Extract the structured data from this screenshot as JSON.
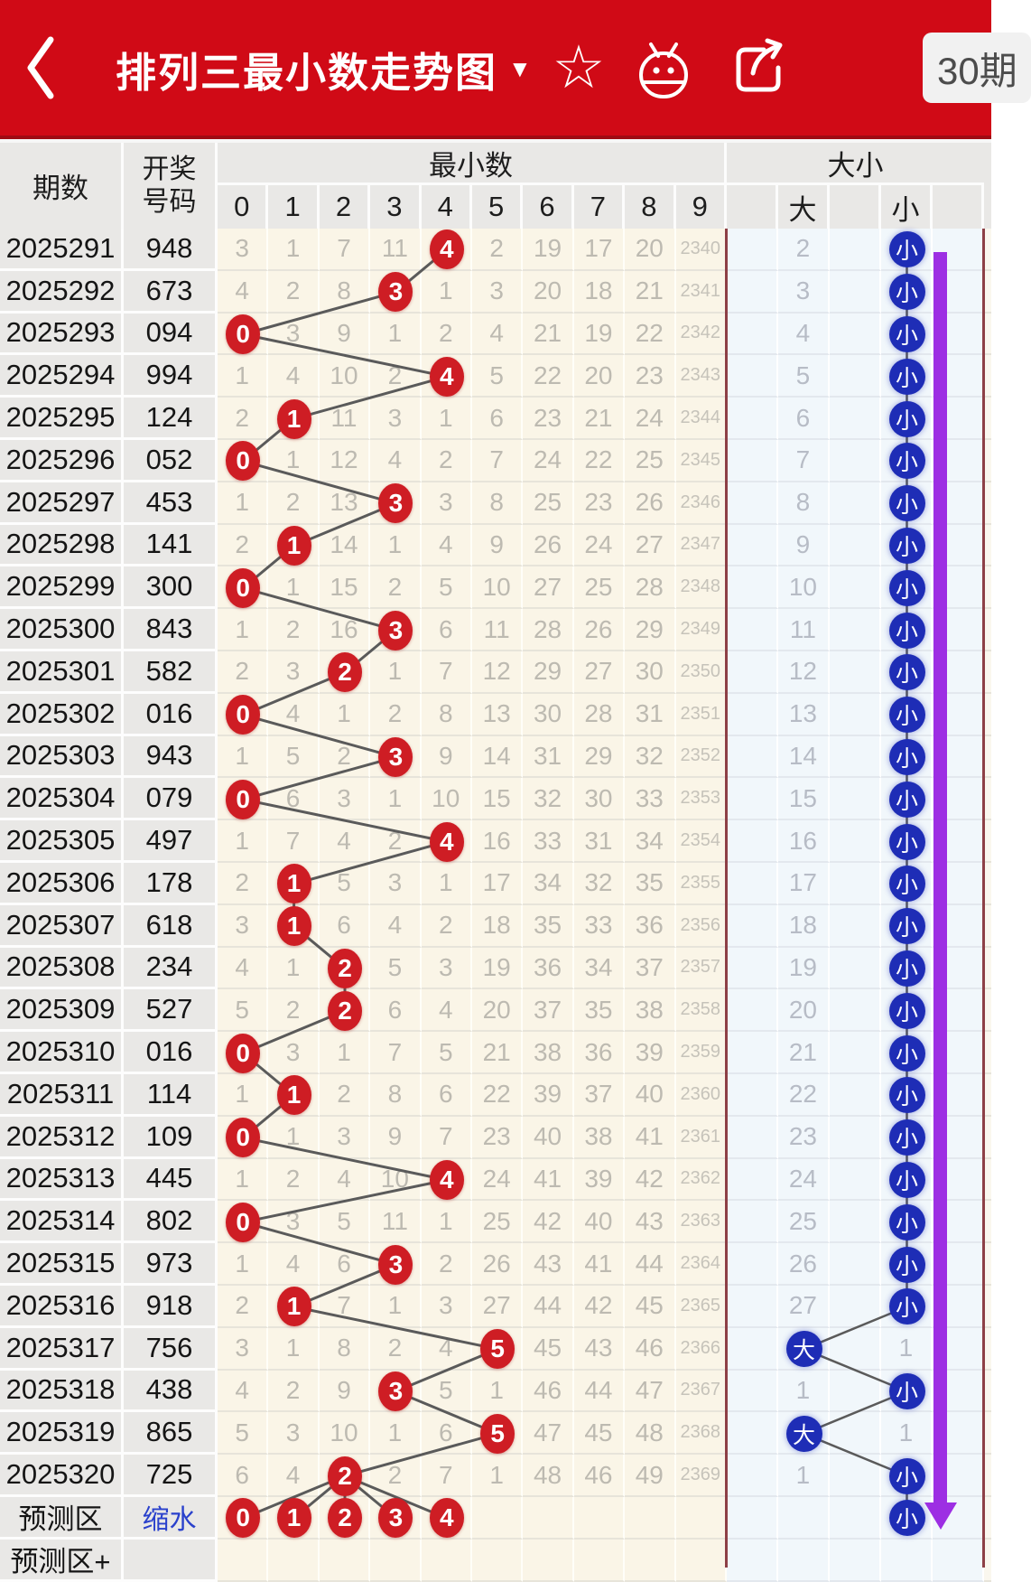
{
  "app_bar": {
    "title": "排列三最小数走势图",
    "title_caret": "▼",
    "star_icon": "star-outline",
    "android_icon": "android-robot",
    "share_icon": "share-export",
    "period_selector": "30期"
  },
  "table_header": {
    "period": "期数",
    "code_line1": "开奖",
    "code_line2": "号码",
    "min_group": "最小数",
    "digits": [
      "0",
      "1",
      "2",
      "3",
      "4",
      "5",
      "6",
      "7",
      "8",
      "9"
    ],
    "size_group": "大小",
    "big": "大",
    "small": "小"
  },
  "rows": [
    {
      "period": "2025291",
      "code": "948",
      "hit": 4,
      "counts": [
        "3",
        "1",
        "7",
        "11",
        "4",
        "2",
        "19",
        "17",
        "20",
        "2340"
      ],
      "size": "小",
      "other": "2"
    },
    {
      "period": "2025292",
      "code": "673",
      "hit": 3,
      "counts": [
        "4",
        "2",
        "8",
        "3",
        "1",
        "3",
        "20",
        "18",
        "21",
        "2341"
      ],
      "size": "小",
      "other": "3"
    },
    {
      "period": "2025293",
      "code": "094",
      "hit": 0,
      "counts": [
        "0",
        "3",
        "9",
        "1",
        "2",
        "4",
        "21",
        "19",
        "22",
        "2342"
      ],
      "size": "小",
      "other": "4"
    },
    {
      "period": "2025294",
      "code": "994",
      "hit": 4,
      "counts": [
        "1",
        "4",
        "10",
        "2",
        "4",
        "5",
        "22",
        "20",
        "23",
        "2343"
      ],
      "size": "小",
      "other": "5"
    },
    {
      "period": "2025295",
      "code": "124",
      "hit": 1,
      "counts": [
        "2",
        "1",
        "11",
        "3",
        "1",
        "6",
        "23",
        "21",
        "24",
        "2344"
      ],
      "size": "小",
      "other": "6"
    },
    {
      "period": "2025296",
      "code": "052",
      "hit": 0,
      "counts": [
        "0",
        "1",
        "12",
        "4",
        "2",
        "7",
        "24",
        "22",
        "25",
        "2345"
      ],
      "size": "小",
      "other": "7"
    },
    {
      "period": "2025297",
      "code": "453",
      "hit": 3,
      "counts": [
        "1",
        "2",
        "13",
        "3",
        "3",
        "8",
        "25",
        "23",
        "26",
        "2346"
      ],
      "size": "小",
      "other": "8"
    },
    {
      "period": "2025298",
      "code": "141",
      "hit": 1,
      "counts": [
        "2",
        "1",
        "14",
        "1",
        "4",
        "9",
        "26",
        "24",
        "27",
        "2347"
      ],
      "size": "小",
      "other": "9"
    },
    {
      "period": "2025299",
      "code": "300",
      "hit": 0,
      "counts": [
        "0",
        "1",
        "15",
        "2",
        "5",
        "10",
        "27",
        "25",
        "28",
        "2348"
      ],
      "size": "小",
      "other": "10"
    },
    {
      "period": "2025300",
      "code": "843",
      "hit": 3,
      "counts": [
        "1",
        "2",
        "16",
        "3",
        "6",
        "11",
        "28",
        "26",
        "29",
        "2349"
      ],
      "size": "小",
      "other": "11"
    },
    {
      "period": "2025301",
      "code": "582",
      "hit": 2,
      "counts": [
        "2",
        "3",
        "2",
        "1",
        "7",
        "12",
        "29",
        "27",
        "30",
        "2350"
      ],
      "size": "小",
      "other": "12"
    },
    {
      "period": "2025302",
      "code": "016",
      "hit": 0,
      "counts": [
        "0",
        "4",
        "1",
        "2",
        "8",
        "13",
        "30",
        "28",
        "31",
        "2351"
      ],
      "size": "小",
      "other": "13"
    },
    {
      "period": "2025303",
      "code": "943",
      "hit": 3,
      "counts": [
        "1",
        "5",
        "2",
        "3",
        "9",
        "14",
        "31",
        "29",
        "32",
        "2352"
      ],
      "size": "小",
      "other": "14"
    },
    {
      "period": "2025304",
      "code": "079",
      "hit": 0,
      "counts": [
        "0",
        "6",
        "3",
        "1",
        "10",
        "15",
        "32",
        "30",
        "33",
        "2353"
      ],
      "size": "小",
      "other": "15"
    },
    {
      "period": "2025305",
      "code": "497",
      "hit": 4,
      "counts": [
        "1",
        "7",
        "4",
        "2",
        "4",
        "16",
        "33",
        "31",
        "34",
        "2354"
      ],
      "size": "小",
      "other": "16"
    },
    {
      "period": "2025306",
      "code": "178",
      "hit": 1,
      "counts": [
        "2",
        "1",
        "5",
        "3",
        "1",
        "17",
        "34",
        "32",
        "35",
        "2355"
      ],
      "size": "小",
      "other": "17"
    },
    {
      "period": "2025307",
      "code": "618",
      "hit": 1,
      "counts": [
        "3",
        "1",
        "6",
        "4",
        "2",
        "18",
        "35",
        "33",
        "36",
        "2356"
      ],
      "size": "小",
      "other": "18"
    },
    {
      "period": "2025308",
      "code": "234",
      "hit": 2,
      "counts": [
        "4",
        "1",
        "2",
        "5",
        "3",
        "19",
        "36",
        "34",
        "37",
        "2357"
      ],
      "size": "小",
      "other": "19"
    },
    {
      "period": "2025309",
      "code": "527",
      "hit": 2,
      "counts": [
        "5",
        "2",
        "2",
        "6",
        "4",
        "20",
        "37",
        "35",
        "38",
        "2358"
      ],
      "size": "小",
      "other": "20"
    },
    {
      "period": "2025310",
      "code": "016",
      "hit": 0,
      "counts": [
        "0",
        "3",
        "1",
        "7",
        "5",
        "21",
        "38",
        "36",
        "39",
        "2359"
      ],
      "size": "小",
      "other": "21"
    },
    {
      "period": "2025311",
      "code": "114",
      "hit": 1,
      "counts": [
        "1",
        "1",
        "2",
        "8",
        "6",
        "22",
        "39",
        "37",
        "40",
        "2360"
      ],
      "size": "小",
      "other": "22"
    },
    {
      "period": "2025312",
      "code": "109",
      "hit": 0,
      "counts": [
        "0",
        "1",
        "3",
        "9",
        "7",
        "23",
        "40",
        "38",
        "41",
        "2361"
      ],
      "size": "小",
      "other": "23"
    },
    {
      "period": "2025313",
      "code": "445",
      "hit": 4,
      "counts": [
        "1",
        "2",
        "4",
        "10",
        "4",
        "24",
        "41",
        "39",
        "42",
        "2362"
      ],
      "size": "小",
      "other": "24"
    },
    {
      "period": "2025314",
      "code": "802",
      "hit": 0,
      "counts": [
        "0",
        "3",
        "5",
        "11",
        "1",
        "25",
        "42",
        "40",
        "43",
        "2363"
      ],
      "size": "小",
      "other": "25"
    },
    {
      "period": "2025315",
      "code": "973",
      "hit": 3,
      "counts": [
        "1",
        "4",
        "6",
        "3",
        "2",
        "26",
        "43",
        "41",
        "44",
        "2364"
      ],
      "size": "小",
      "other": "26"
    },
    {
      "period": "2025316",
      "code": "918",
      "hit": 1,
      "counts": [
        "2",
        "1",
        "7",
        "1",
        "3",
        "27",
        "44",
        "42",
        "45",
        "2365"
      ],
      "size": "小",
      "other": "27"
    },
    {
      "period": "2025317",
      "code": "756",
      "hit": 5,
      "counts": [
        "3",
        "1",
        "8",
        "2",
        "4",
        "5",
        "45",
        "43",
        "46",
        "2366"
      ],
      "size": "大",
      "other": "1"
    },
    {
      "period": "2025318",
      "code": "438",
      "hit": 3,
      "counts": [
        "4",
        "2",
        "9",
        "3",
        "5",
        "1",
        "46",
        "44",
        "47",
        "2367"
      ],
      "size": "小",
      "other": "1"
    },
    {
      "period": "2025319",
      "code": "865",
      "hit": 5,
      "counts": [
        "5",
        "3",
        "10",
        "1",
        "6",
        "5",
        "47",
        "45",
        "48",
        "2368"
      ],
      "size": "大",
      "other": "1"
    },
    {
      "period": "2025320",
      "code": "725",
      "hit": 2,
      "counts": [
        "6",
        "4",
        "2",
        "2",
        "7",
        "1",
        "48",
        "46",
        "49",
        "2369"
      ],
      "size": "小",
      "other": "1"
    }
  ],
  "prediction": {
    "label": "预测区",
    "action": "缩水",
    "digits": [
      0,
      1,
      2,
      3,
      4
    ],
    "size": "小"
  },
  "prediction_plus": {
    "label": "预测区+"
  },
  "colors": {
    "app_red": "#d00a16",
    "app_red_dark": "#9f0b13",
    "hit_circle_red": "#ce1d24",
    "size_circle_blue": "#1e2db6",
    "trend_arrow_purple": "#9d2fe3",
    "link_blue": "#2a41cc",
    "section_border_maroon": "#8d4046",
    "min_area_cream": "#faf5e7",
    "size_area_blue": "#f1f7fb"
  }
}
